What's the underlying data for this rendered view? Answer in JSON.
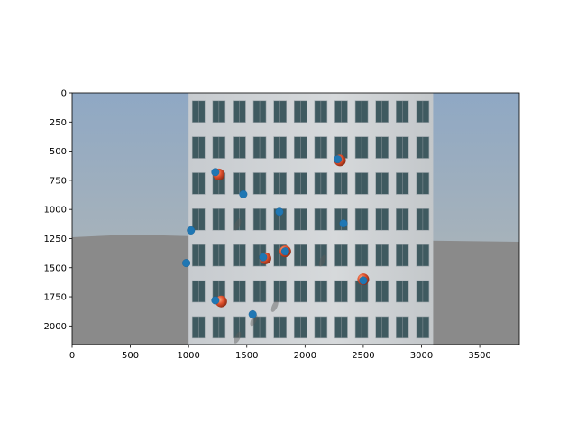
{
  "chart_data": {
    "type": "scatter",
    "title": "",
    "xlabel": "",
    "ylabel": "",
    "xlim": [
      0,
      3840
    ],
    "ylim": [
      2160,
      0
    ],
    "y_inverted": true,
    "x_ticks": [
      0,
      500,
      1000,
      1500,
      2000,
      2500,
      3000,
      3500
    ],
    "y_ticks": [
      0,
      250,
      500,
      750,
      1000,
      1250,
      1500,
      1750,
      2000
    ],
    "grid": false,
    "legend": "none",
    "background": {
      "kind": "photo-composite",
      "building_x_range": [
        1000,
        3100
      ],
      "description_colors": {
        "sky_top": "#8fa8c4",
        "sky_bottom": "#b6b9b4",
        "ground": "#8a8a8a",
        "facade": "#cfd3d6",
        "window": "#3f5a60"
      }
    },
    "series": [
      {
        "marker": "circle",
        "color": "#1f77b4",
        "x": [
          1230,
          1470,
          2280,
          1780,
          2330,
          1020,
          980,
          1640,
          1830,
          1230,
          1550,
          2500
        ],
        "y": [
          680,
          870,
          570,
          1020,
          1120,
          1180,
          1460,
          1410,
          1360,
          1780,
          1900,
          1610
        ]
      }
    ],
    "ground_truth_balls": {
      "color": "#e0502c",
      "x": [
        1260,
        2300,
        1280,
        2500,
        1660,
        1830
      ],
      "y": [
        700,
        580,
        1790,
        1600,
        1420,
        1360
      ]
    }
  }
}
